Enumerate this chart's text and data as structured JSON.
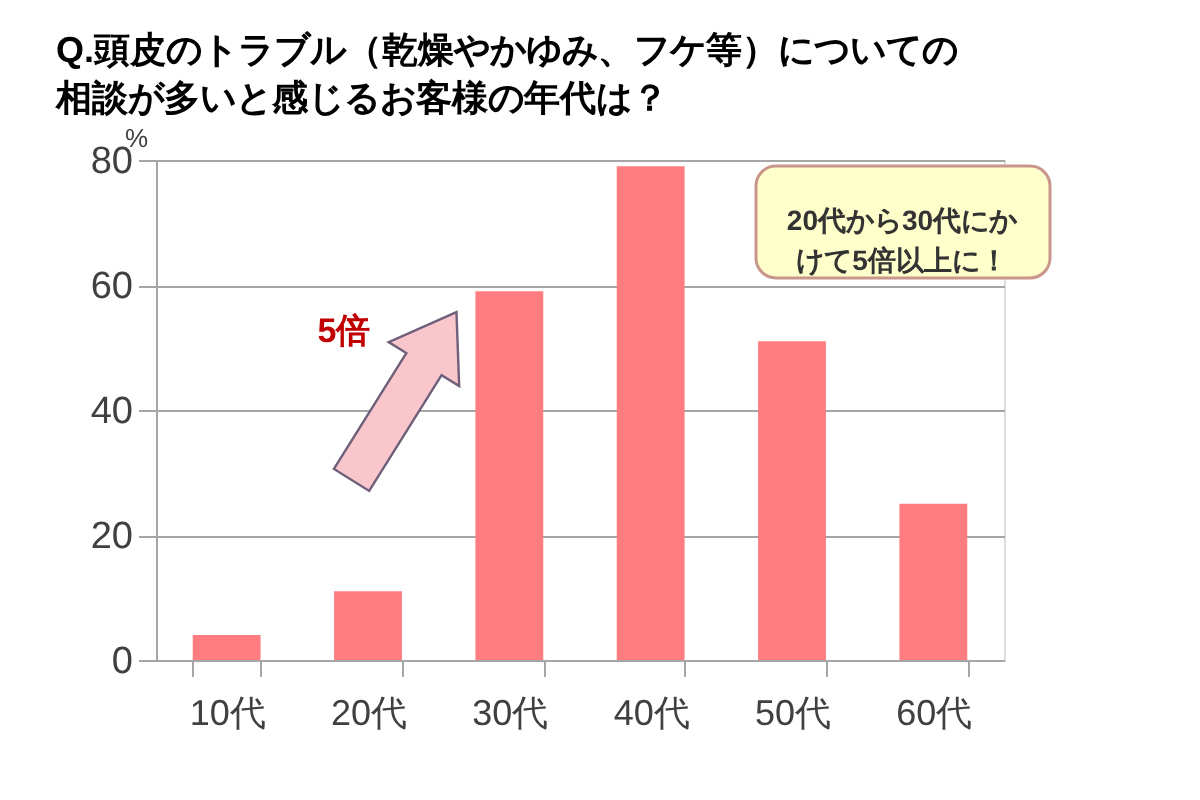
{
  "chart_data": {
    "type": "bar",
    "title": "Q.頭皮のトラブル（乾燥やかゆみ、フケ等）についての相談が多いと感じるお客様の年代は？",
    "ylabel": "%",
    "categories": [
      "10代",
      "20代",
      "30代",
      "40代",
      "50代",
      "60代"
    ],
    "values": [
      4,
      11,
      59,
      79,
      51,
      25
    ],
    "color": "#ff7c80",
    "ylim": [
      0,
      80
    ],
    "yticks": [
      0,
      20,
      40,
      60,
      80
    ],
    "grid": "y",
    "annotations": [
      "5倍",
      "20代から30代にかけて5倍以上に！"
    ]
  }
}
